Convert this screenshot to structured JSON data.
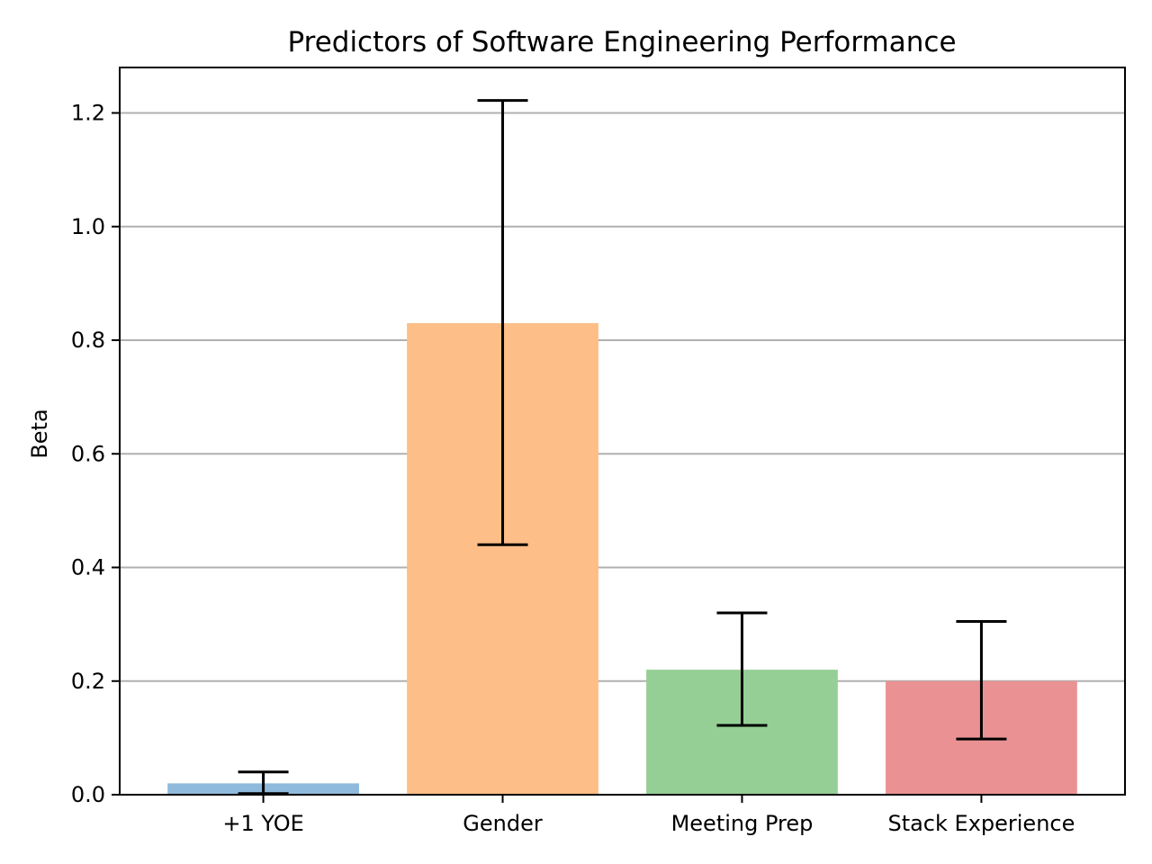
{
  "chart_data": {
    "type": "bar",
    "title": "Predictors of Software Engineering Performance",
    "xlabel": "",
    "ylabel": "Beta",
    "categories": [
      "+1 YOE",
      "Gender",
      "Meeting Prep",
      "Stack Experience"
    ],
    "values": [
      0.02,
      0.83,
      0.22,
      0.2
    ],
    "error_low": [
      0.002,
      0.44,
      0.122,
      0.098
    ],
    "error_high": [
      0.04,
      1.222,
      0.32,
      0.305
    ],
    "colors": [
      "#8fbadc",
      "#fdbe87",
      "#95cf95",
      "#ea9293"
    ],
    "ylim": [
      0,
      1.28
    ],
    "yticks": [
      0.0,
      0.2,
      0.4,
      0.6,
      0.8,
      1.0,
      1.2
    ],
    "ytick_labels": [
      "0.0",
      "0.2",
      "0.4",
      "0.6",
      "0.8",
      "1.0",
      "1.2"
    ],
    "grid": "horizontal",
    "legend": "none"
  }
}
